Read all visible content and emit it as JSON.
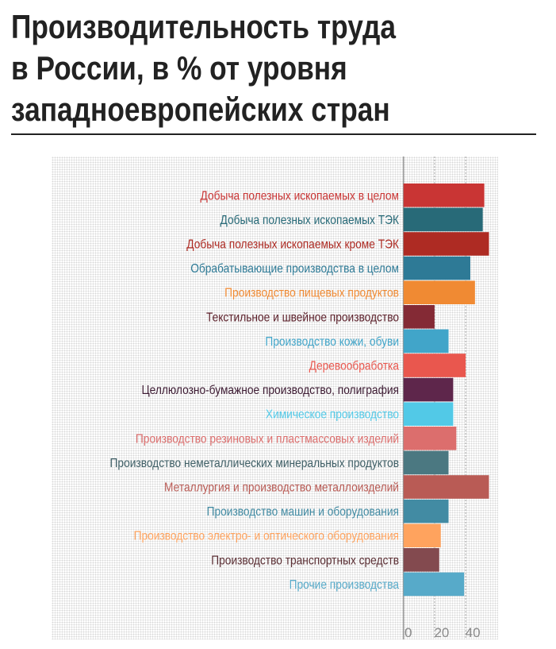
{
  "title": {
    "lines": [
      "Производительность труда",
      "в России, в % от уровня",
      "западноевропейских стран"
    ]
  },
  "chart_data": {
    "type": "bar",
    "orientation": "horizontal",
    "title": "Производительность труда в России, в % от уровня западноевропейских стран",
    "xlabel": "",
    "ylabel": "",
    "xlim": [
      0,
      60
    ],
    "xticks": [
      0,
      20,
      40
    ],
    "grid": true,
    "categories": [
      "Добыча полезных ископаемых в целом",
      "Добыча полезных ископаемых ТЭК",
      "Добыча полезных ископаемых кроме ТЭК",
      "Обрабатывающие производства в целом",
      "Производство пищевых продуктов",
      "Текстильное и швейное производство",
      "Производство кожи, обуви",
      "Деревообработка",
      "Целлюлозно-бумажное производство, полиграфия",
      "Химическое производство",
      "Производство резиновых и пластмассовых изделий",
      "Производство неметаллических минеральных продуктов",
      "Металлургия и производство металлоизделий",
      "Производство машин и оборудования",
      "Производство электро- и оптического оборудования",
      "Производство транспортных средств",
      "Прочие производства"
    ],
    "values": [
      52,
      51,
      55,
      43,
      46,
      20,
      29,
      40,
      32,
      32,
      34,
      29,
      55,
      29,
      24,
      23,
      39
    ],
    "colors": [
      "#c93534",
      "#286a78",
      "#ae2b23",
      "#2e7a96",
      "#f08a33",
      "#842a35",
      "#41a5c9",
      "#e9574e",
      "#5e264b",
      "#52c9e7",
      "#dc6e6d",
      "#4b7881",
      "#b95b55",
      "#428ba3",
      "#ffa35e",
      "#834a4f",
      "#57aac9"
    ],
    "label_colors": [
      "#c93534",
      "#286a78",
      "#ae2b23",
      "#2e7a96",
      "#f08a33",
      "#5a1e28",
      "#41a5c9",
      "#e9574e",
      "#3c1a32",
      "#52c9e7",
      "#dc6e6d",
      "#3f5f66",
      "#b95b55",
      "#428ba3",
      "#ffa35e",
      "#5a2e33",
      "#57aac9"
    ]
  }
}
